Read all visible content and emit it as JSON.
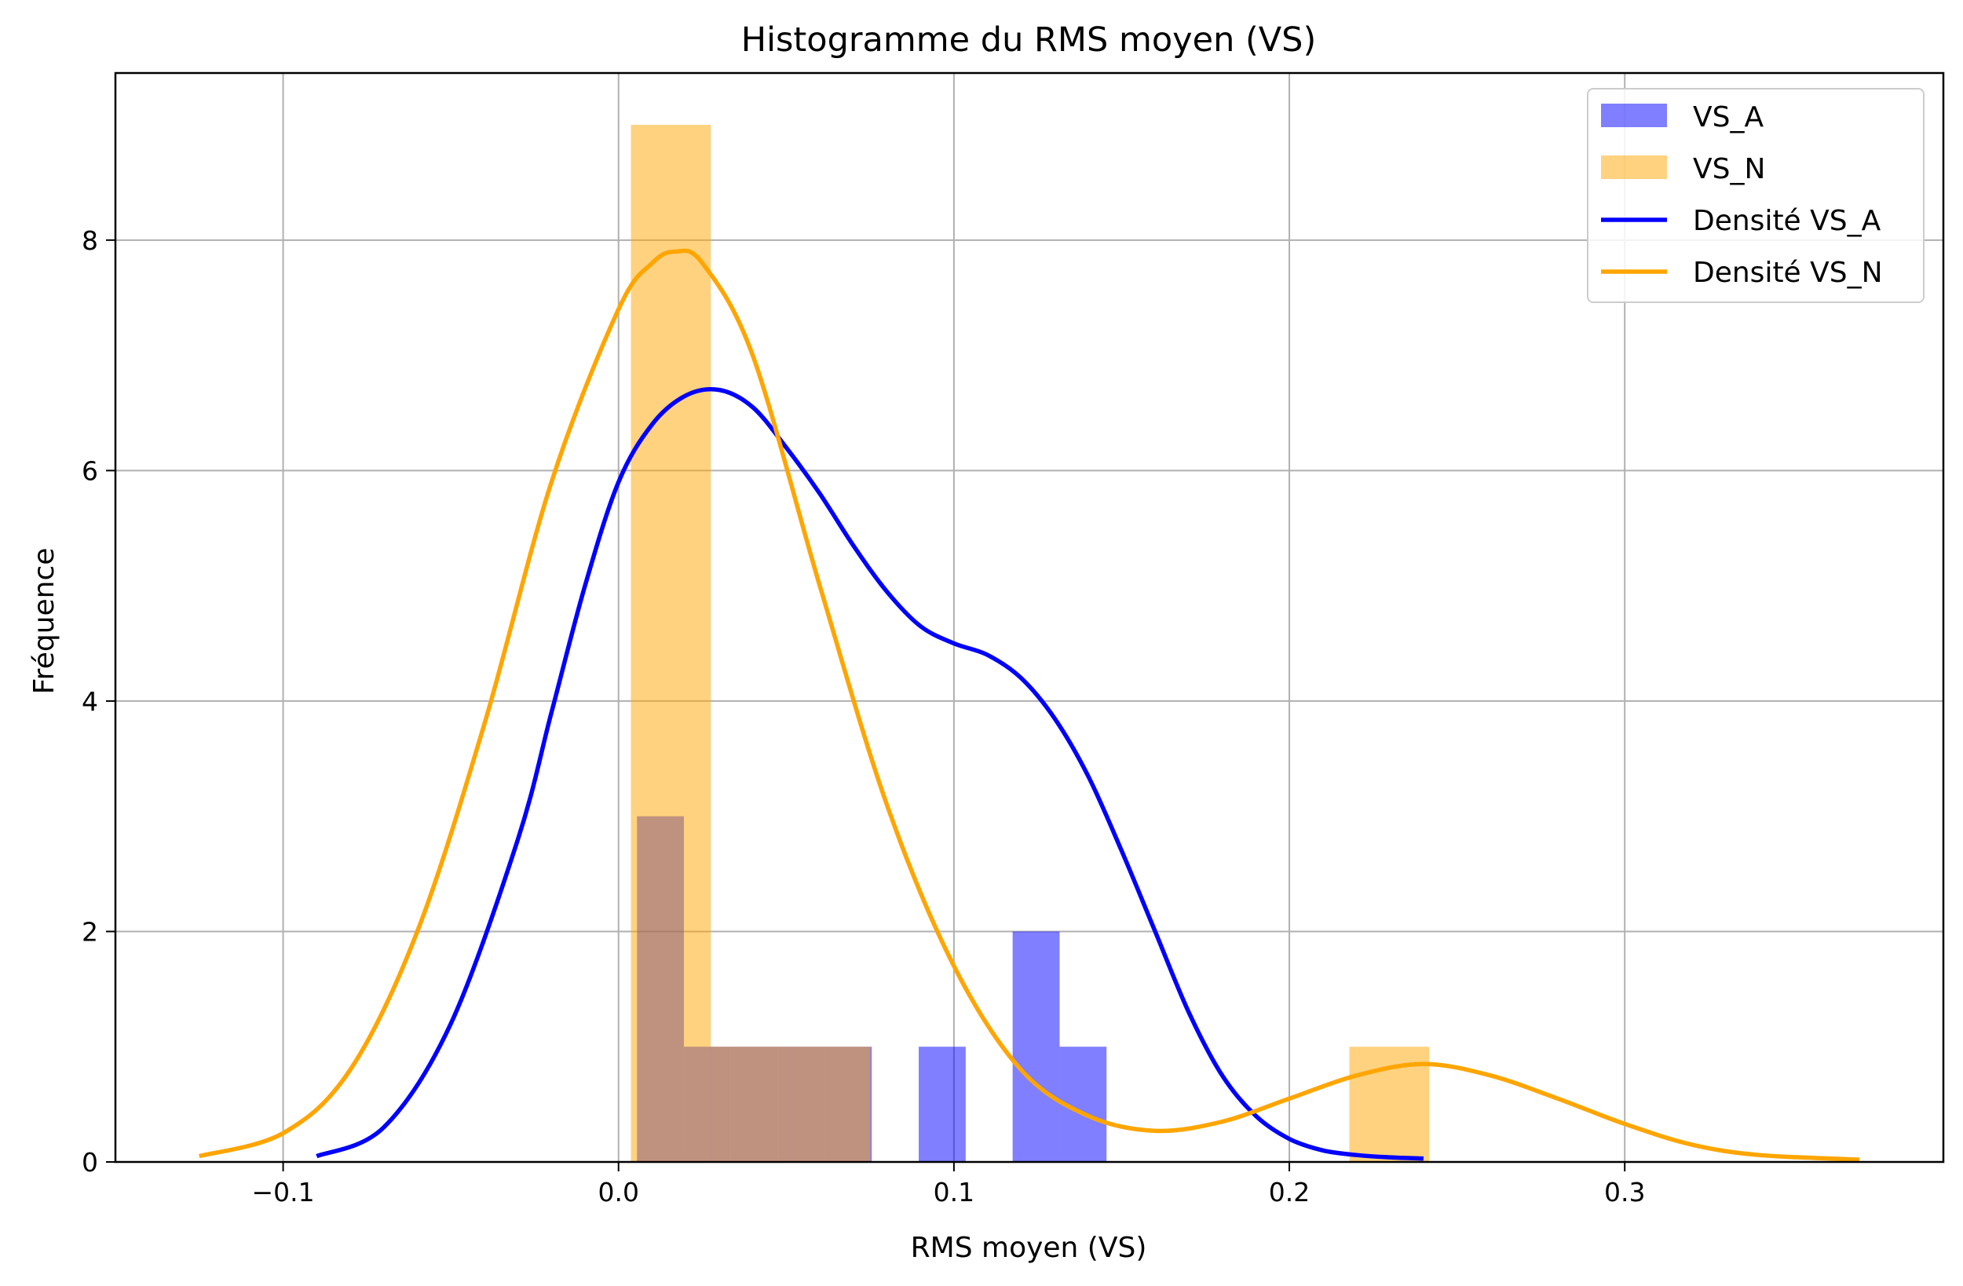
{
  "chart_data": {
    "type": "bar",
    "title": "Histogramme du RMS moyen (VS)",
    "xlabel": "RMS moyen (VS)",
    "ylabel": "Fréquence",
    "xlim": [
      -0.15,
      0.395
    ],
    "ylim": [
      0,
      9.45
    ],
    "xticks": [
      -0.1,
      0.0,
      0.1,
      0.2,
      0.3
    ],
    "xtick_labels": [
      "−0.1",
      "0.0",
      "0.1",
      "0.2",
      "0.3"
    ],
    "yticks": [
      0,
      2,
      4,
      6,
      8
    ],
    "ytick_labels": [
      "0",
      "2",
      "4",
      "6",
      "8"
    ],
    "grid": true,
    "legend_position": "top-right",
    "series": [
      {
        "name": "VS_A",
        "kind": "histogram",
        "color": "#0000ff",
        "opacity": 0.5,
        "bins": [
          {
            "x0": 0.0055,
            "x1": 0.0195,
            "count": 3
          },
          {
            "x0": 0.0195,
            "x1": 0.0335,
            "count": 1
          },
          {
            "x0": 0.0335,
            "x1": 0.0475,
            "count": 1
          },
          {
            "x0": 0.0475,
            "x1": 0.0615,
            "count": 1
          },
          {
            "x0": 0.0615,
            "x1": 0.0755,
            "count": 1
          },
          {
            "x0": 0.0755,
            "x1": 0.0895,
            "count": 0
          },
          {
            "x0": 0.0895,
            "x1": 0.1035,
            "count": 1
          },
          {
            "x0": 0.1035,
            "x1": 0.1175,
            "count": 0
          },
          {
            "x0": 0.1175,
            "x1": 0.1315,
            "count": 2
          },
          {
            "x0": 0.1315,
            "x1": 0.1455,
            "count": 1
          }
        ]
      },
      {
        "name": "VS_N",
        "kind": "histogram",
        "color": "#ffa500",
        "opacity": 0.5,
        "bins": [
          {
            "x0": 0.0037,
            "x1": 0.0275,
            "count": 9
          },
          {
            "x0": 0.0275,
            "x1": 0.0513,
            "count": 1
          },
          {
            "x0": 0.0513,
            "x1": 0.0751,
            "count": 1
          },
          {
            "x0": 0.0751,
            "x1": 0.0989,
            "count": 0
          },
          {
            "x0": 0.0989,
            "x1": 0.1227,
            "count": 0
          },
          {
            "x0": 0.1227,
            "x1": 0.1465,
            "count": 0
          },
          {
            "x0": 0.1465,
            "x1": 0.1703,
            "count": 0
          },
          {
            "x0": 0.1703,
            "x1": 0.1941,
            "count": 0
          },
          {
            "x0": 0.1941,
            "x1": 0.2179,
            "count": 0
          },
          {
            "x0": 0.2179,
            "x1": 0.2417,
            "count": 1
          }
        ]
      },
      {
        "name": "Densité VS_A",
        "kind": "line",
        "color": "#0000ff",
        "x": [
          -0.09,
          -0.07,
          -0.05,
          -0.03,
          -0.02,
          -0.01,
          0.0,
          0.01,
          0.02,
          0.03,
          0.04,
          0.05,
          0.06,
          0.07,
          0.08,
          0.09,
          0.1,
          0.11,
          0.12,
          0.13,
          0.14,
          0.15,
          0.16,
          0.17,
          0.18,
          0.19,
          0.2,
          0.21,
          0.22,
          0.23,
          0.24
        ],
        "y": [
          0.05,
          0.3,
          1.2,
          2.8,
          3.9,
          5.0,
          5.9,
          6.4,
          6.65,
          6.7,
          6.55,
          6.2,
          5.8,
          5.35,
          4.95,
          4.65,
          4.5,
          4.4,
          4.2,
          3.85,
          3.35,
          2.7,
          2.0,
          1.3,
          0.75,
          0.4,
          0.2,
          0.1,
          0.06,
          0.04,
          0.03
        ]
      },
      {
        "name": "Densité VS_N",
        "kind": "line",
        "color": "#ffa500",
        "x": [
          -0.125,
          -0.1,
          -0.08,
          -0.06,
          -0.04,
          -0.02,
          0.0,
          0.01,
          0.017,
          0.025,
          0.04,
          0.06,
          0.08,
          0.1,
          0.12,
          0.14,
          0.16,
          0.18,
          0.2,
          0.22,
          0.24,
          0.26,
          0.28,
          0.3,
          0.32,
          0.34,
          0.37
        ],
        "y": [
          0.05,
          0.25,
          0.8,
          2.0,
          3.8,
          5.9,
          7.4,
          7.8,
          7.9,
          7.8,
          7.0,
          5.0,
          3.1,
          1.7,
          0.8,
          0.4,
          0.27,
          0.35,
          0.55,
          0.75,
          0.85,
          0.75,
          0.55,
          0.33,
          0.15,
          0.06,
          0.02
        ]
      }
    ]
  }
}
